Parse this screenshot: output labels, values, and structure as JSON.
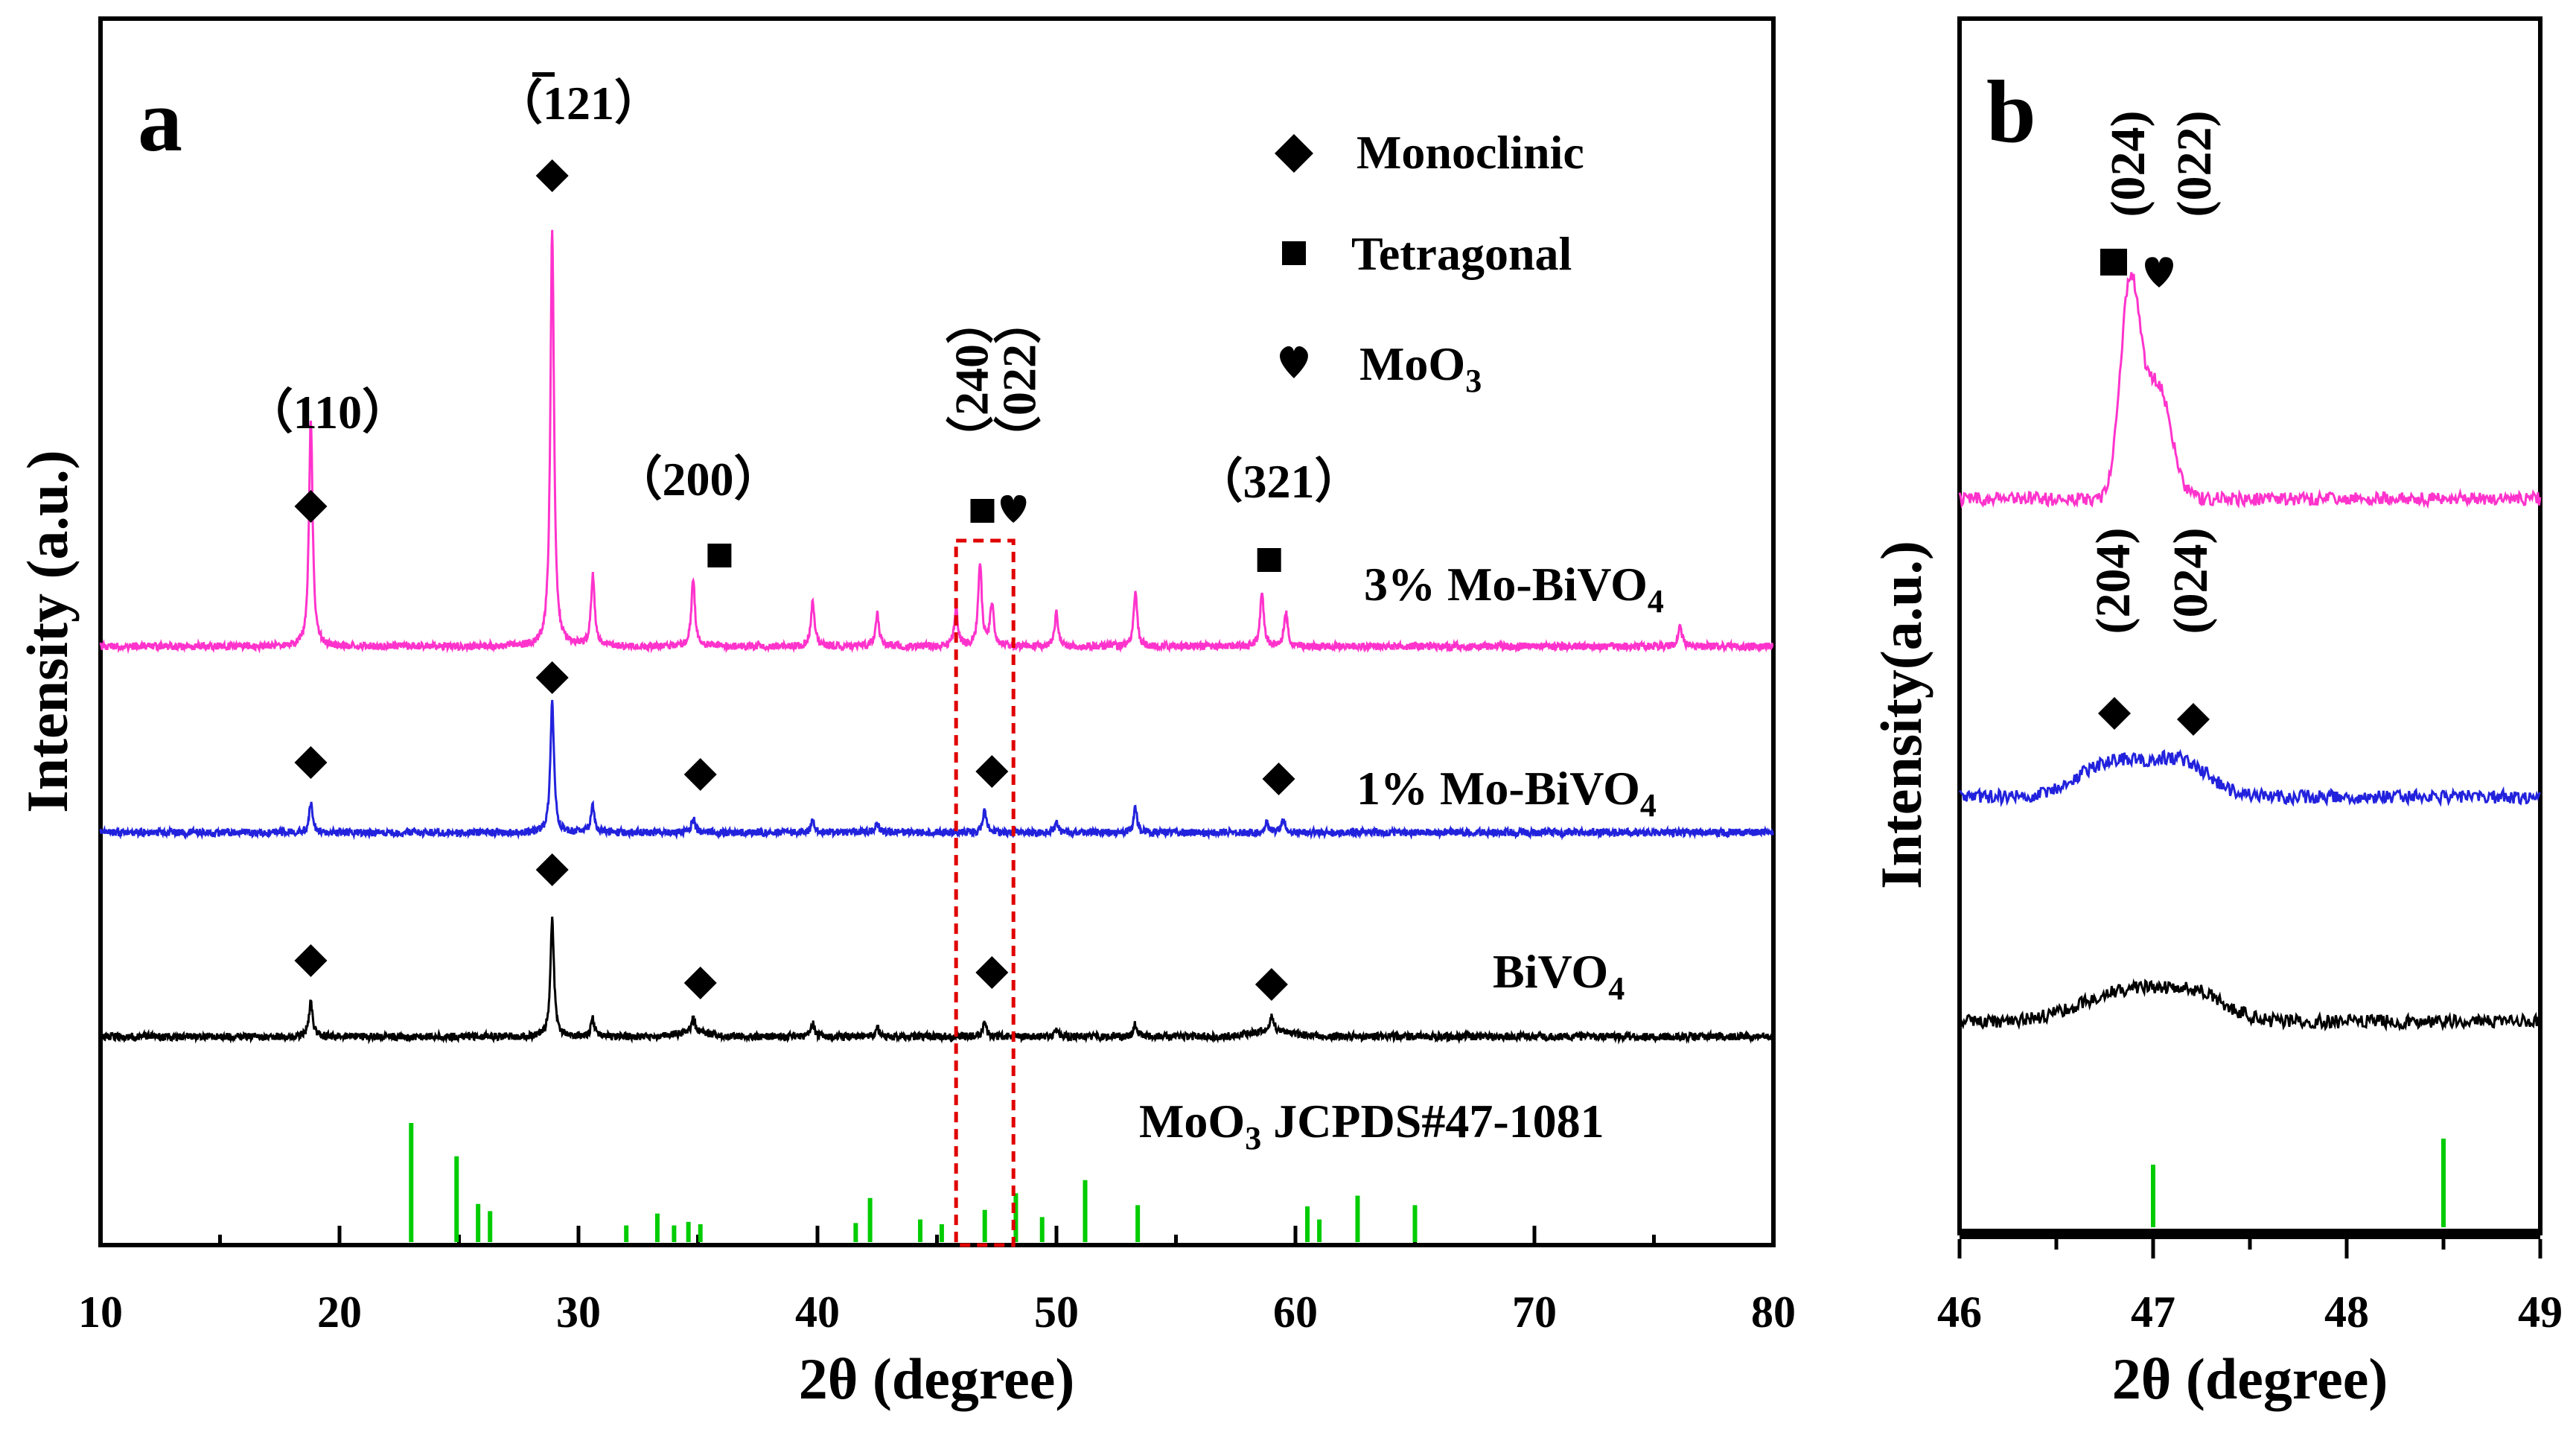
{
  "chart_data": [
    {
      "type": "line",
      "panel_label": "a",
      "xlabel": "2θ (degree)",
      "ylabel": "Intensity (a.u.)",
      "xlim": [
        10,
        80
      ],
      "xticks": [
        "10",
        "20",
        "30",
        "40",
        "50",
        "60",
        "70",
        "80"
      ],
      "legend": {
        "position": "top-right",
        "entries": [
          {
            "symbol": "diamond",
            "label": "Monoclinic"
          },
          {
            "symbol": "square",
            "label": "Tetragonal"
          },
          {
            "symbol": "heart",
            "label": "MoO",
            "subscript": "3"
          }
        ]
      },
      "series": [
        {
          "name": "3% Mo-BiVO4",
          "label": "3% Mo-BiVO",
          "subscript": "4",
          "color": "#ff33cc",
          "peaks": [
            {
              "x": 18.8,
              "h": 0.55
            },
            {
              "x": 28.9,
              "h": 1.0
            },
            {
              "x": 30.6,
              "h": 0.17
            },
            {
              "x": 34.8,
              "h": 0.16
            },
            {
              "x": 39.8,
              "h": 0.11
            },
            {
              "x": 42.5,
              "h": 0.08
            },
            {
              "x": 45.8,
              "h": 0.09
            },
            {
              "x": 46.8,
              "h": 0.2
            },
            {
              "x": 47.3,
              "h": 0.1
            },
            {
              "x": 50.0,
              "h": 0.08
            },
            {
              "x": 53.3,
              "h": 0.13
            },
            {
              "x": 58.6,
              "h": 0.13
            },
            {
              "x": 59.6,
              "h": 0.08
            },
            {
              "x": 76.1,
              "h": 0.05
            }
          ]
        },
        {
          "name": "1% Mo-BiVO4",
          "label": "1% Mo-BiVO",
          "subscript": "4",
          "color": "#2222dd",
          "peaks": [
            {
              "x": 18.8,
              "h": 0.12
            },
            {
              "x": 28.9,
              "h": 0.55
            },
            {
              "x": 30.6,
              "h": 0.11
            },
            {
              "x": 34.8,
              "h": 0.06
            },
            {
              "x": 39.8,
              "h": 0.05
            },
            {
              "x": 42.5,
              "h": 0.04
            },
            {
              "x": 47.0,
              "h": 0.09
            },
            {
              "x": 50.0,
              "h": 0.04
            },
            {
              "x": 53.3,
              "h": 0.1
            },
            {
              "x": 58.8,
              "h": 0.05
            },
            {
              "x": 59.5,
              "h": 0.05
            }
          ]
        },
        {
          "name": "BiVO4",
          "label": "BiVO",
          "subscript": "4",
          "color": "#000000",
          "peaks": [
            {
              "x": 18.8,
              "h": 0.18
            },
            {
              "x": 28.9,
              "h": 0.6
            },
            {
              "x": 30.6,
              "h": 0.09
            },
            {
              "x": 34.8,
              "h": 0.08
            },
            {
              "x": 39.8,
              "h": 0.07
            },
            {
              "x": 42.5,
              "h": 0.05
            },
            {
              "x": 47.0,
              "h": 0.07
            },
            {
              "x": 50.0,
              "h": 0.04
            },
            {
              "x": 53.3,
              "h": 0.07
            },
            {
              "x": 59.0,
              "h": 0.08
            }
          ]
        }
      ],
      "reference": {
        "label": "MoO",
        "subscript": "3",
        "suffix": " JCPDS#47-1081",
        "color": "#00cc00",
        "sticks": [
          {
            "x": 23.0,
            "h": 1.0
          },
          {
            "x": 24.9,
            "h": 0.72
          },
          {
            "x": 25.8,
            "h": 0.32
          },
          {
            "x": 26.3,
            "h": 0.26
          },
          {
            "x": 32.0,
            "h": 0.14
          },
          {
            "x": 33.3,
            "h": 0.24
          },
          {
            "x": 34.0,
            "h": 0.14
          },
          {
            "x": 34.6,
            "h": 0.17
          },
          {
            "x": 35.1,
            "h": 0.15
          },
          {
            "x": 41.6,
            "h": 0.16
          },
          {
            "x": 42.2,
            "h": 0.37
          },
          {
            "x": 44.3,
            "h": 0.19
          },
          {
            "x": 45.2,
            "h": 0.15
          },
          {
            "x": 47.0,
            "h": 0.27
          },
          {
            "x": 48.3,
            "h": 0.41
          },
          {
            "x": 49.4,
            "h": 0.21
          },
          {
            "x": 51.2,
            "h": 0.52
          },
          {
            "x": 53.4,
            "h": 0.31
          },
          {
            "x": 60.5,
            "h": 0.3
          },
          {
            "x": 61.0,
            "h": 0.19
          },
          {
            "x": 62.6,
            "h": 0.39
          },
          {
            "x": 65.0,
            "h": 0.31
          }
        ]
      },
      "annotations": {
        "hkl": [
          {
            "text": "（110）",
            "x": 19.5,
            "rotate": false
          },
          {
            "text": "（121）",
            "x": 30.0,
            "rotate": false,
            "overbar": "1"
          },
          {
            "text": "（200）",
            "x": 35.0,
            "rotate": false
          },
          {
            "text": "（240）",
            "x": 46.8,
            "rotate": true
          },
          {
            "text": "（022）",
            "x": 48.8,
            "rotate": true
          },
          {
            "text": "（321）",
            "x": 59.3,
            "rotate": false
          }
        ],
        "highlight_box": {
          "x_from": 45.8,
          "x_to": 48.2,
          "style": "red-dashed"
        }
      }
    },
    {
      "type": "line",
      "panel_label": "b",
      "xlabel": "2θ (degree)",
      "ylabel": "Intensity(a.u.)",
      "xlim": [
        46,
        49
      ],
      "xticks": [
        "46",
        "47",
        "48",
        "49"
      ],
      "series": [
        {
          "name": "3% Mo-BiVO4",
          "color": "#ff33cc",
          "peaks": [
            {
              "x": 46.88,
              "h": 1.0,
              "w": 0.07
            },
            {
              "x": 47.02,
              "h": 0.55,
              "w": 0.1
            }
          ]
        },
        {
          "name": "1% Mo-BiVO4",
          "color": "#2222dd",
          "peaks": [
            {
              "x": 46.8,
              "h": 0.22,
              "w": 0.25
            },
            {
              "x": 47.15,
              "h": 0.2,
              "w": 0.2
            }
          ]
        },
        {
          "name": "BiVO4",
          "color": "#000000",
          "peaks": [
            {
              "x": 46.9,
              "h": 0.22,
              "w": 0.35
            },
            {
              "x": 47.25,
              "h": 0.12,
              "w": 0.2
            }
          ]
        }
      ],
      "reference": {
        "color": "#00cc00",
        "sticks": [
          {
            "x": 47.0,
            "h": 0.6
          },
          {
            "x": 48.5,
            "h": 0.85
          }
        ]
      },
      "annotations": {
        "hkl": [
          {
            "text": "(024)",
            "x": 46.8,
            "group": "top",
            "symbol": "square"
          },
          {
            "text": "(022)",
            "x": 47.2,
            "group": "top",
            "symbol": "heart"
          },
          {
            "text": "(204)",
            "x": 46.8,
            "group": "mid",
            "symbol": "diamond"
          },
          {
            "text": "(024)",
            "x": 47.2,
            "group": "mid",
            "symbol": "diamond"
          }
        ]
      }
    }
  ]
}
